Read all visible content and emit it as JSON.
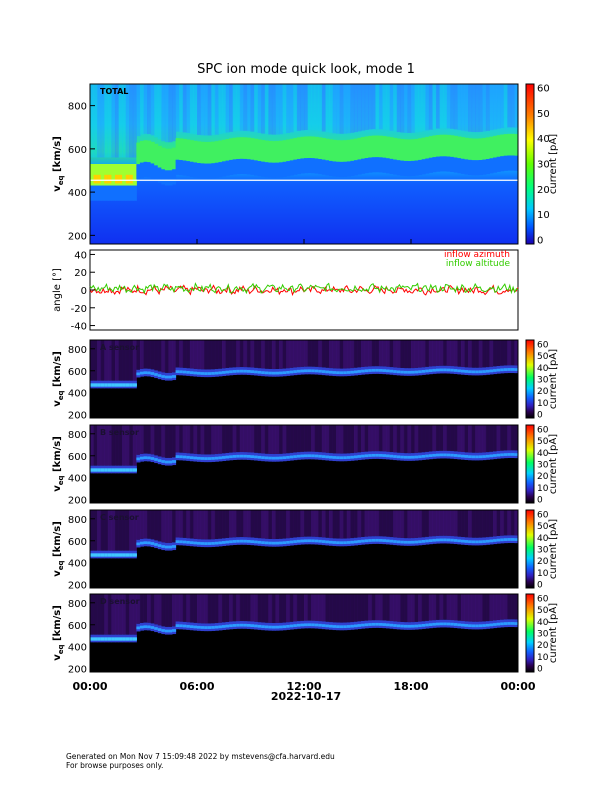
{
  "title": "SPC ion mode quick look, mode 1",
  "date_label": "2022-10-17",
  "footer": {
    "line1": "Generated on Mon Nov  7 15:09:48 2022 by mstevens@cfa.harvard.edu",
    "line2": "For browse purposes only."
  },
  "colors": {
    "colormap_total": "rainbow (blue-cyan-green-yellow-red)",
    "colormap_sensors": "black-purple-blue-cyan-green-yellow-red",
    "azimuth": "#ff0000",
    "altitude": "#33cc00"
  },
  "chart_data": [
    {
      "type": "heatmap",
      "panel_label": "TOTAL",
      "ylabel": "v_eq [km/s]",
      "ylabel_main": "v",
      "ylabel_sub": "eq",
      "ylabel_units": " [km/s]",
      "yticks": [
        "200",
        "400",
        "600",
        "800"
      ],
      "ylim": [
        160,
        900
      ],
      "x": [
        "00:00",
        "06:00",
        "12:00",
        "18:00",
        "00:00"
      ],
      "colorbar": {
        "label": "current [pA]",
        "ticks": [
          "0",
          "10",
          "20",
          "30",
          "40",
          "50",
          "60"
        ],
        "range": [
          0,
          60
        ],
        "colormap": "rainbow"
      },
      "description_values": {
        "peak_speed_km_s": {
          "00:00": 470,
          "03:00": 560,
          "12:00": 580,
          "18:00": 600,
          "24:00": 600
        }
      }
    },
    {
      "type": "line",
      "ylabel": "angle [°]",
      "yticks": [
        "-40",
        "-20",
        "0",
        "20",
        "40"
      ],
      "ylim": [
        -45,
        45
      ],
      "x": [
        "00:00",
        "06:00",
        "12:00",
        "18:00",
        "00:00"
      ],
      "series": [
        {
          "name": "inflow azimuth",
          "color": "#ff0000",
          "mean": 0,
          "spread": 4
        },
        {
          "name": "inflow altitude",
          "color": "#33cc00",
          "mean": 2,
          "spread": 4
        }
      ]
    },
    {
      "type": "heatmap",
      "panel_label": "A sensor",
      "yticks": [
        "200",
        "400",
        "600",
        "800"
      ],
      "ylim": [
        170,
        880
      ],
      "colorbar": {
        "label": "current [pA]",
        "ticks": [
          "0",
          "10",
          "20",
          "30",
          "40",
          "50",
          "60"
        ],
        "range": [
          0,
          60
        ],
        "colormap": "plasma-like"
      }
    },
    {
      "type": "heatmap",
      "panel_label": "B sensor",
      "yticks": [
        "200",
        "400",
        "600",
        "800"
      ],
      "ylim": [
        170,
        880
      ],
      "colorbar": {
        "label": "current [pA]",
        "ticks": [
          "0",
          "10",
          "20",
          "30",
          "40",
          "50",
          "60"
        ],
        "range": [
          0,
          60
        ],
        "colormap": "plasma-like"
      }
    },
    {
      "type": "heatmap",
      "panel_label": "C sensor",
      "yticks": [
        "200",
        "400",
        "600",
        "800"
      ],
      "ylim": [
        170,
        880
      ],
      "colorbar": {
        "label": "current [pA]",
        "ticks": [
          "0",
          "10",
          "20",
          "30",
          "40",
          "50",
          "60"
        ],
        "range": [
          0,
          60
        ],
        "colormap": "plasma-like"
      }
    },
    {
      "type": "heatmap",
      "panel_label": "D sensor",
      "yticks": [
        "200",
        "400",
        "600",
        "800"
      ],
      "ylim": [
        170,
        880
      ],
      "colorbar": {
        "label": "current [pA]",
        "ticks": [
          "0",
          "10",
          "20",
          "30",
          "40",
          "50",
          "60"
        ],
        "range": [
          0,
          60
        ],
        "colormap": "plasma-like"
      }
    }
  ]
}
